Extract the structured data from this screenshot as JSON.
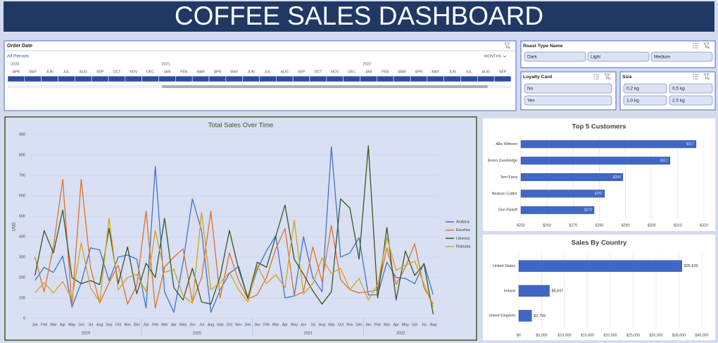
{
  "header": {
    "title": "COFFEE SALES DASHBOARD"
  },
  "order_date": {
    "title": "Order Date",
    "selection": "All Periods",
    "level": "MONTHS",
    "years": [
      "2020",
      "2021",
      "2022"
    ],
    "months": [
      "APR",
      "MAY",
      "JUN",
      "JUL",
      "AUG",
      "SEP",
      "OCT",
      "NOV",
      "DEC",
      "JAN",
      "FEB",
      "MAR",
      "APR",
      "MAY",
      "JUN",
      "JUL",
      "AUG",
      "SEP",
      "OCT",
      "NOV",
      "DEC",
      "JAN",
      "FEB",
      "MAR",
      "APR",
      "MAY",
      "JUN",
      "JUL",
      "AUG",
      "SEP"
    ]
  },
  "slicers": [
    {
      "title": "Roast Type Name",
      "items": [
        "Dark",
        "Light",
        "Medium"
      ]
    },
    {
      "title": "Loyalty Card",
      "items": [
        "No",
        "Yes"
      ]
    },
    {
      "title": "Size",
      "items": [
        "0.2 kg",
        "0.5 kg",
        "1.0 kg",
        "2.5 kg"
      ]
    }
  ],
  "chart_data": [
    {
      "type": "line",
      "title": "Total Sales Over Time",
      "y_label": "USD",
      "categories": [
        "Jan",
        "Feb",
        "Mar",
        "Apr",
        "May",
        "Jun",
        "Jul",
        "Aug",
        "Sep",
        "Oct",
        "Nov",
        "Dec",
        "Jan",
        "Feb",
        "Mar",
        "Apr",
        "May",
        "Jun",
        "Jul",
        "Aug",
        "Sep",
        "Oct",
        "Nov",
        "Dec",
        "Jan",
        "Feb",
        "Mar",
        "Apr",
        "May",
        "Jun",
        "Jul",
        "Aug",
        "Sep",
        "Oct",
        "Nov",
        "Dec",
        "Jan",
        "Feb",
        "Mar",
        "Apr",
        "May",
        "Jun",
        "Jul",
        "Aug"
      ],
      "x_groups": [
        "2019",
        "2020",
        "2021",
        "2022"
      ],
      "ylim": [
        0,
        900
      ],
      "yticks": [
        0,
        100,
        200,
        300,
        400,
        500,
        600,
        700,
        800,
        900
      ],
      "grid": true,
      "legend": "right",
      "series": [
        {
          "name": "Arabica",
          "color": "#4472c4",
          "values": [
            185,
            250,
            225,
            305,
            55,
            175,
            345,
            335,
            185,
            300,
            310,
            290,
            50,
            745,
            130,
            30,
            275,
            585,
            430,
            30,
            140,
            220,
            255,
            95,
            240,
            330,
            405,
            100,
            110,
            400,
            200,
            130,
            840,
            300,
            320,
            395,
            115,
            115,
            275,
            200,
            195,
            170,
            270,
            115
          ]
        },
        {
          "name": "Excelsa",
          "color": "#e0702a",
          "values": [
            300,
            130,
            350,
            680,
            60,
            680,
            250,
            75,
            175,
            260,
            70,
            160,
            525,
            50,
            250,
            300,
            340,
            80,
            200,
            525,
            100,
            320,
            185,
            95,
            115,
            200,
            340,
            440,
            110,
            130,
            350,
            180,
            455,
            190,
            140,
            125,
            130,
            140,
            345,
            165,
            250,
            365,
            150,
            70
          ]
        },
        {
          "name": "Liberica",
          "color": "#375623",
          "values": [
            210,
            430,
            320,
            530,
            200,
            170,
            185,
            165,
            440,
            170,
            350,
            120,
            270,
            200,
            490,
            150,
            90,
            245,
            80,
            70,
            205,
            430,
            240,
            100,
            275,
            250,
            400,
            555,
            290,
            215,
            135,
            70,
            130,
            585,
            540,
            290,
            845,
            100,
            445,
            90,
            330,
            210,
            265,
            20
          ]
        },
        {
          "name": "Robusta",
          "color": "#d4a21c",
          "values": [
            125,
            175,
            125,
            180,
            95,
            370,
            150,
            80,
            490,
            140,
            200,
            215,
            130,
            430,
            225,
            240,
            110,
            75,
            520,
            140,
            175,
            225,
            140,
            80,
            260,
            170,
            215,
            150,
            480,
            120,
            170,
            295,
            220,
            245,
            140,
            195,
            90,
            165,
            395,
            235,
            260,
            280,
            170,
            55
          ]
        }
      ]
    },
    {
      "type": "hbar",
      "title": "Top 5 Customers",
      "categories": [
        "Allis Wilmore",
        "Brenn Dundredge",
        "Terri Farra",
        "Nealson Cuttler",
        "Don Flintoff"
      ],
      "values": [
        317,
        307,
        289,
        282,
        278
      ],
      "value_labels": [
        "$317",
        "$307",
        "$289",
        "$282",
        "$278"
      ],
      "color": "#3f67c6",
      "xlim": [
        250,
        320
      ],
      "xticks": [
        {
          "value": 250,
          "label": "$250"
        },
        {
          "value": 260,
          "label": "$260"
        },
        {
          "value": 270,
          "label": "$270"
        },
        {
          "value": 280,
          "label": "$280"
        },
        {
          "value": 290,
          "label": "$290"
        },
        {
          "value": 300,
          "label": "$300"
        },
        {
          "value": 310,
          "label": "$310"
        },
        {
          "value": 320,
          "label": "$320"
        }
      ],
      "grid": true
    },
    {
      "type": "hbar",
      "title": "Sales By Country",
      "categories": [
        "United States",
        "Ireland",
        "United Kingdom"
      ],
      "values": [
        35639,
        6697,
        2799
      ],
      "value_labels": [
        "$35,639",
        "$6,697",
        "$2,799"
      ],
      "color": "#3f67c6",
      "xlim": [
        0,
        40000
      ],
      "xticks": [
        {
          "value": 0,
          "label": "$0"
        },
        {
          "value": 5000,
          "label": "$5,000"
        },
        {
          "value": 10000,
          "label": "$10,000"
        },
        {
          "value": 15000,
          "label": "$15,000"
        },
        {
          "value": 20000,
          "label": "$20,000"
        },
        {
          "value": 25000,
          "label": "$25,000"
        },
        {
          "value": 30000,
          "label": "$30,000"
        },
        {
          "value": 35000,
          "label": "$35,000"
        },
        {
          "value": 40000,
          "label": "$40,000"
        }
      ],
      "grid": true
    }
  ]
}
